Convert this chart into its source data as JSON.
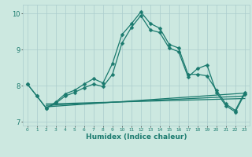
{
  "xlabel": "Humidex (Indice chaleur)",
  "background_color": "#cce8e0",
  "grid_color": "#aacccc",
  "line_color": "#1a7a6e",
  "xlim": [
    -0.5,
    23.5
  ],
  "ylim": [
    6.9,
    10.25
  ],
  "xticks": [
    0,
    1,
    2,
    3,
    4,
    5,
    6,
    7,
    8,
    9,
    10,
    11,
    12,
    13,
    14,
    15,
    16,
    17,
    18,
    19,
    20,
    21,
    22,
    23
  ],
  "yticks": [
    7,
    8,
    9,
    10
  ],
  "series": [
    {
      "x": [
        0,
        1,
        2,
        3,
        4,
        5,
        6,
        7,
        8,
        9,
        10,
        11,
        12,
        13,
        14,
        15,
        16,
        17,
        18,
        19,
        20,
        21,
        22,
        23
      ],
      "y": [
        8.05,
        7.72,
        7.38,
        7.55,
        7.78,
        7.88,
        8.05,
        8.2,
        8.08,
        8.62,
        9.42,
        9.72,
        10.05,
        9.73,
        9.6,
        9.15,
        9.05,
        8.32,
        8.32,
        8.28,
        7.88,
        7.5,
        7.32,
        7.82
      ],
      "marker": "D",
      "markersize": 2.5,
      "lw": 0.9
    },
    {
      "x": [
        0,
        1,
        2,
        3,
        4,
        5,
        6,
        7,
        8,
        9,
        10,
        11,
        12,
        13,
        14,
        15,
        16,
        17,
        18,
        19,
        20,
        21,
        22,
        23
      ],
      "y": [
        8.05,
        7.72,
        7.38,
        7.52,
        7.72,
        7.82,
        7.95,
        8.05,
        7.98,
        8.32,
        9.18,
        9.62,
        9.95,
        9.55,
        9.48,
        9.05,
        8.95,
        8.25,
        8.48,
        8.58,
        7.82,
        7.45,
        7.28,
        7.78
      ],
      "marker": "D",
      "markersize": 2.5,
      "lw": 0.9
    },
    {
      "x": [
        2,
        23
      ],
      "y": [
        7.42,
        7.8
      ],
      "marker": null,
      "markersize": 0,
      "lw": 0.9
    },
    {
      "x": [
        2,
        23
      ],
      "y": [
        7.46,
        7.72
      ],
      "marker": null,
      "markersize": 0,
      "lw": 0.9
    },
    {
      "x": [
        2,
        23
      ],
      "y": [
        7.5,
        7.65
      ],
      "marker": null,
      "markersize": 0,
      "lw": 0.9
    }
  ]
}
